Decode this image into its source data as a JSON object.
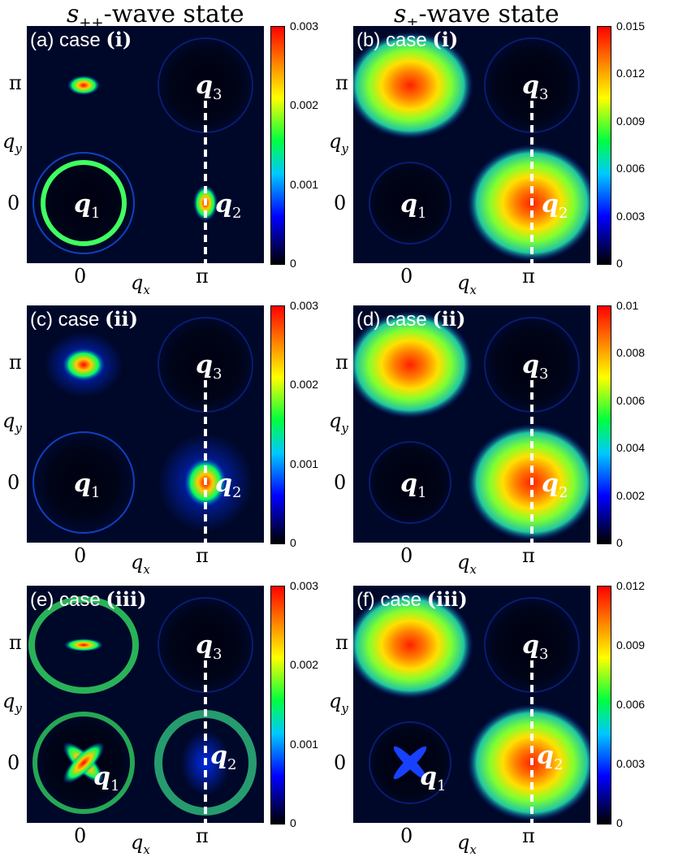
{
  "titles": {
    "left": {
      "sym": "s",
      "sub": "++",
      "rest": "-wave state"
    },
    "right": {
      "sym": "s",
      "sub": "±",
      "rest": "-wave state"
    }
  },
  "axis": {
    "x_label": "q",
    "x_sub": "x",
    "y_label": "q",
    "y_sub": "y",
    "tick_zero": "0",
    "tick_pi": "π"
  },
  "q_labels": {
    "q": "q",
    "s1": "1",
    "s2": "2",
    "s3": "3"
  },
  "colors": {
    "background": "#00082a",
    "dashed_line": "#ffffff"
  },
  "chart_data": [
    {
      "type": "heatmap",
      "panel": "(a)",
      "case_prefix": "case ",
      "case": "(i)",
      "colorbar": [
        "0.003",
        "0.002",
        "0.001",
        "0"
      ],
      "vmin": 0,
      "vmax": 0.003
    },
    {
      "type": "heatmap",
      "panel": "(b)",
      "case_prefix": "case ",
      "case": "(i)",
      "colorbar": [
        "0.015",
        "0.012",
        "0.009",
        "0.006",
        "0.003",
        "0"
      ],
      "vmin": 0,
      "vmax": 0.015
    },
    {
      "type": "heatmap",
      "panel": "(c)",
      "case_prefix": "case ",
      "case": "(ii)",
      "colorbar": [
        "0.003",
        "0.002",
        "0.001",
        "0"
      ],
      "vmin": 0,
      "vmax": 0.003
    },
    {
      "type": "heatmap",
      "panel": "(d)",
      "case_prefix": "case ",
      "case": "(ii)",
      "colorbar": [
        "0.01",
        "0.008",
        "0.006",
        "0.004",
        "0.002",
        "0"
      ],
      "vmin": 0,
      "vmax": 0.01
    },
    {
      "type": "heatmap",
      "panel": "(e)",
      "case_prefix": "case ",
      "case": "(iii)",
      "colorbar": [
        "0.003",
        "0.002",
        "0.001",
        "0"
      ],
      "vmin": 0,
      "vmax": 0.003
    },
    {
      "type": "heatmap",
      "panel": "(f)",
      "case_prefix": "case ",
      "case": "(iii)",
      "colorbar": [
        "0.012",
        "0.009",
        "0.006",
        "0.003",
        "0"
      ],
      "vmin": 0,
      "vmax": 0.012
    }
  ]
}
